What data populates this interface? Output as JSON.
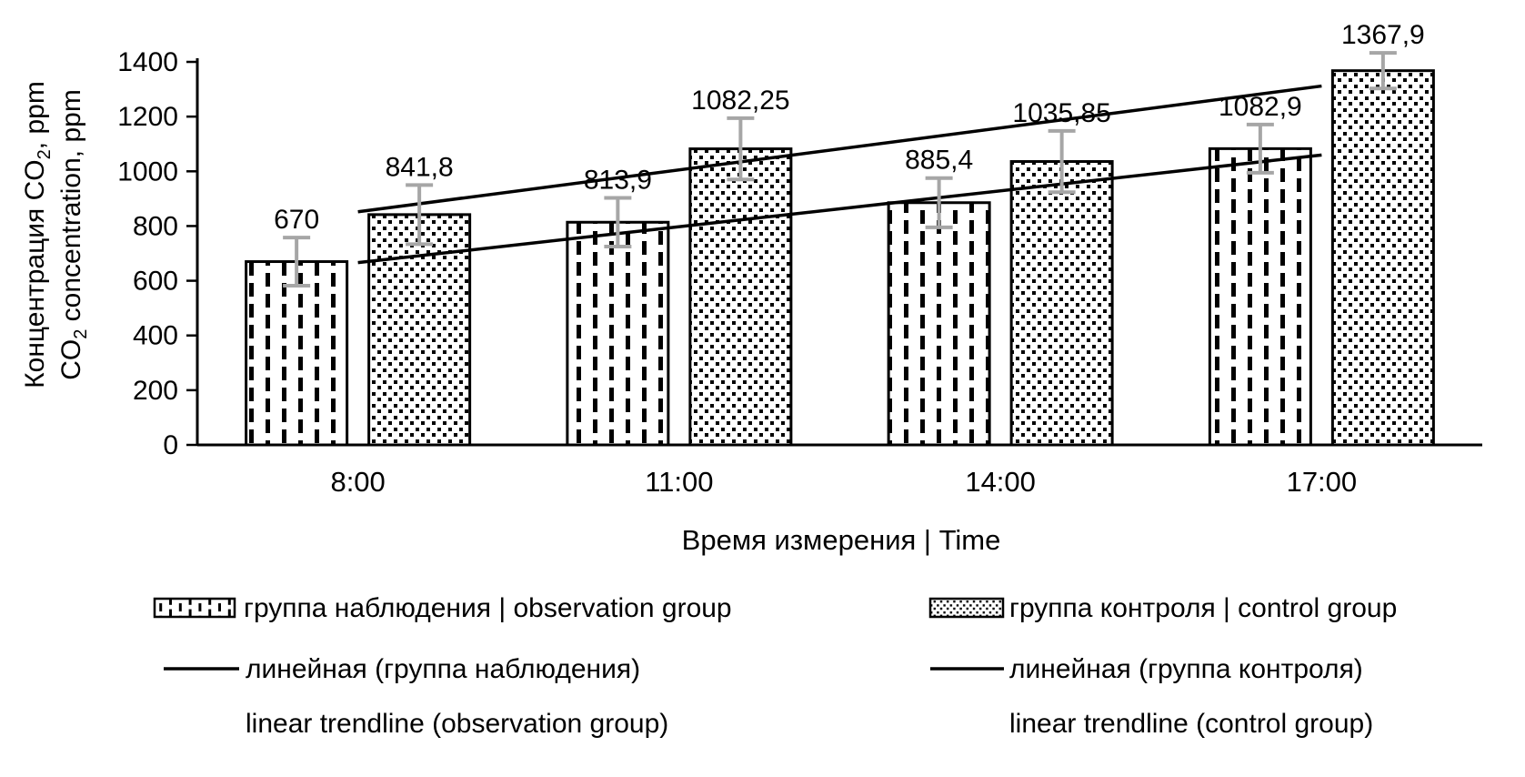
{
  "chart_data": {
    "type": "bar",
    "title": "",
    "categories": [
      "8:00",
      "11:00",
      "14:00",
      "17:00"
    ],
    "series": [
      {
        "name": "группа наблюдения | observation group",
        "pattern": "vertical-dashes",
        "values": [
          670,
          813.9,
          885.4,
          1082.9
        ],
        "labels": [
          "670",
          "813,9",
          "885,4",
          "1082,9"
        ],
        "errors": [
          88,
          89,
          90,
          88
        ]
      },
      {
        "name": "группа контроля | control group",
        "pattern": "dots",
        "values": [
          841.8,
          1082.25,
          1035.85,
          1367.9
        ],
        "labels": [
          "841,8",
          "1082,25",
          "1035,85",
          "1367,9"
        ],
        "errors": [
          108,
          112,
          112,
          65
        ]
      }
    ],
    "trendlines": [
      {
        "name": "линейная (группа наблюдения)",
        "name_en": "linear trendline (observation group)",
        "series": 0,
        "y_start": 666.5,
        "y_end": 1059.6
      },
      {
        "name": "линейная (группа контроля)",
        "name_en": "linear trendline (control group)",
        "series": 1,
        "y_start": 852.2,
        "y_end": 1311.7
      }
    ],
    "xlabel": "Время измерения | Time",
    "ylabel": {
      "ru": "Концентрация CO₂, ppm",
      "en": "CO₂ concentration, ppm",
      "l1_pre": "Концентрация CO",
      "l1_sub": "2",
      "l1_suf": ", ppm",
      "l2_pre": "CO",
      "l2_sub": "2",
      "l2_suf": " concentration, ppm"
    },
    "ylim": [
      0,
      1400
    ],
    "ytick_step": 200,
    "grid": "off",
    "legend_position": "bottom",
    "colors": {
      "bar_stroke": "#000000",
      "bar_fill": "#ffffff",
      "error_bar": "#a6a6a6",
      "trendline": "#000000",
      "text": "#000000"
    }
  }
}
